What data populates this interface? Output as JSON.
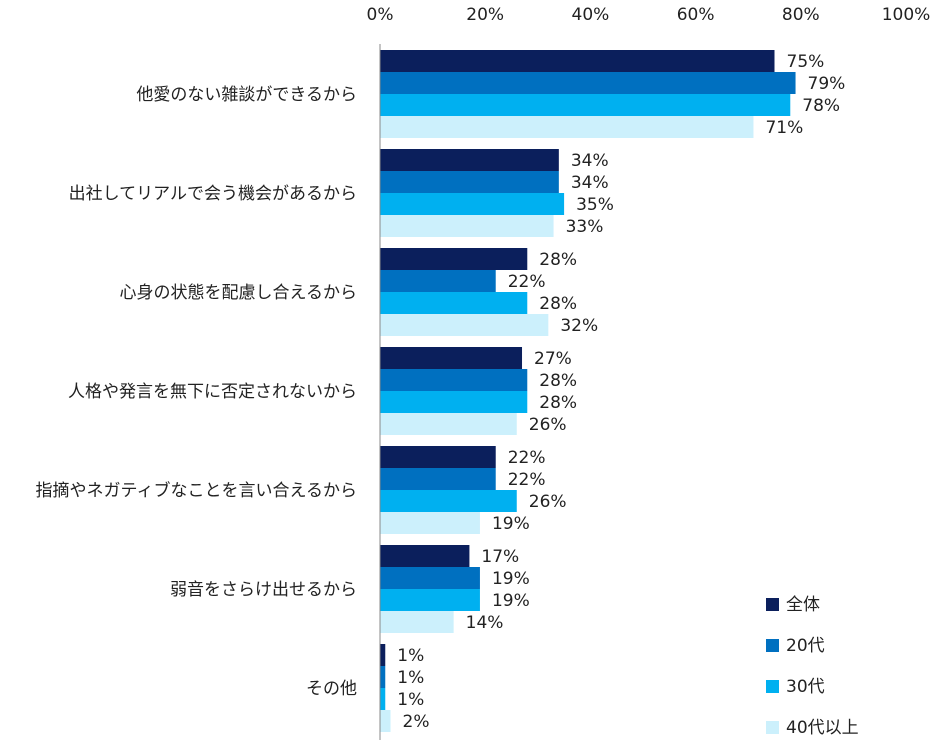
{
  "chart_data": {
    "type": "bar",
    "orientation": "horizontal",
    "categories": [
      "他愛のない雑談ができるから",
      "出社してリアルで会う機会があるから",
      "心身の状態を配慮し合えるから",
      "人格や発言を無下に否定されないから",
      "指摘やネガティブなことを言い合えるから",
      "弱音をさらけ出せるから",
      "その他"
    ],
    "series": [
      {
        "name": "全体",
        "color": "#0b1f5c",
        "values": [
          75,
          34,
          28,
          27,
          22,
          17,
          1
        ]
      },
      {
        "name": "20代",
        "color": "#0070c0",
        "values": [
          79,
          34,
          22,
          28,
          22,
          19,
          1
        ]
      },
      {
        "name": "30代",
        "color": "#00b0f0",
        "values": [
          78,
          35,
          28,
          28,
          26,
          19,
          1
        ]
      },
      {
        "name": "40代以上",
        "color": "#ccf0fc",
        "values": [
          71,
          33,
          32,
          26,
          19,
          14,
          2
        ]
      }
    ],
    "value_suffix": "%",
    "xlim": [
      0,
      100
    ],
    "xticks": [
      "0%",
      "20%",
      "40%",
      "60%",
      "80%",
      "100%"
    ],
    "axis_position": "top",
    "grid": false,
    "legend_position": "bottom-right"
  }
}
